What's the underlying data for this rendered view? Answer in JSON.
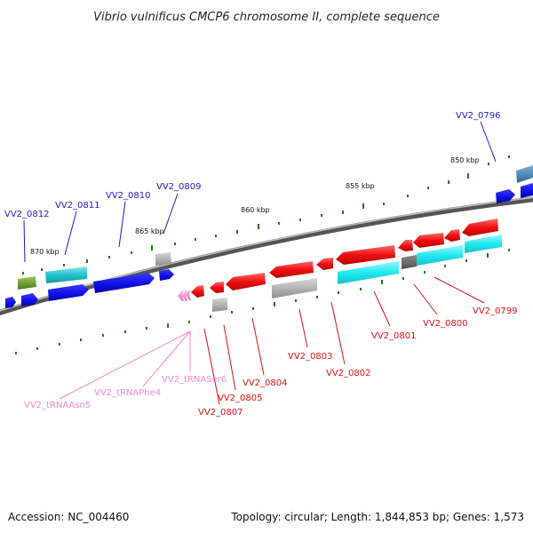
{
  "title": "Vibrio vulnificus CMCP6 chromosome II, complete sequence",
  "accession": "Accession: NC_004460",
  "summary": "Topology: circular; Length: 1,844,853 bp; Genes: 1,573",
  "ticks": [
    {
      "label": "850 kbp"
    },
    {
      "label": "855 kbp"
    },
    {
      "label": "860 kbp"
    },
    {
      "label": "865 kbp"
    },
    {
      "label": "870 kbp"
    }
  ],
  "genes": [
    {
      "label": "VV2_0796",
      "strand": "+",
      "color": "#1a1acc"
    },
    {
      "label": "VV2_0799",
      "strand": "-",
      "color": "#dd1111"
    },
    {
      "label": "VV2_0800",
      "strand": "-",
      "color": "#dd1111"
    },
    {
      "label": "VV2_0801",
      "strand": "-",
      "color": "#dd1111"
    },
    {
      "label": "VV2_0802",
      "strand": "-",
      "color": "#dd1111"
    },
    {
      "label": "VV2_0803",
      "strand": "-",
      "color": "#dd1111"
    },
    {
      "label": "VV2_0804",
      "strand": "-",
      "color": "#dd1111"
    },
    {
      "label": "VV2_0805",
      "strand": "-",
      "color": "#dd1111"
    },
    {
      "label": "VV2_0807",
      "strand": "-",
      "color": "#dd1111"
    },
    {
      "label": "VV2_tRNASer6",
      "strand": "-",
      "color": "#ee88cc"
    },
    {
      "label": "VV2_tRNAPhe4",
      "strand": "-",
      "color": "#ee88cc"
    },
    {
      "label": "VV2_tRNAAsn5",
      "strand": "-",
      "color": "#ee88cc"
    },
    {
      "label": "VV2_0809",
      "strand": "+",
      "color": "#1a1acc"
    },
    {
      "label": "VV2_0810",
      "strand": "+",
      "color": "#1a1acc"
    },
    {
      "label": "VV2_0811",
      "strand": "+",
      "color": "#1a1acc"
    },
    {
      "label": "VV2_0812",
      "strand": "+",
      "color": "#1a1acc"
    }
  ]
}
